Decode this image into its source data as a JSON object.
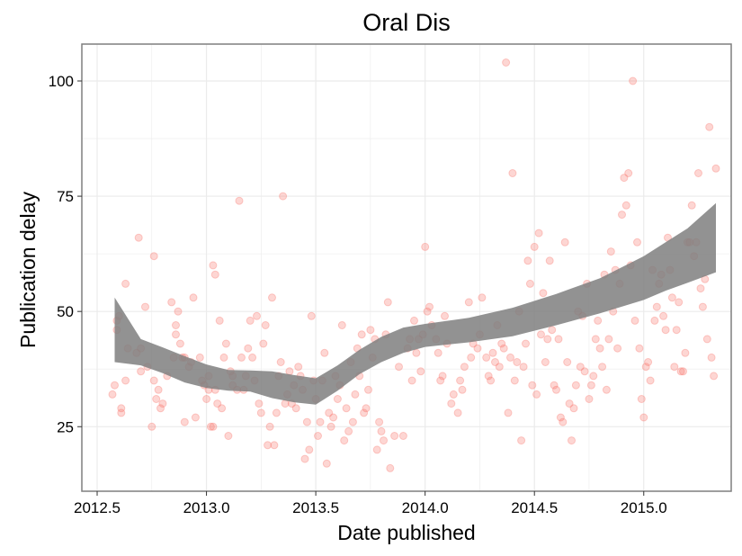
{
  "chart_data": {
    "type": "scatter",
    "title": "Oral Dis",
    "xlabel": "Date published",
    "ylabel": "Publication delay",
    "xlim": [
      2012.43,
      2015.4
    ],
    "ylim": [
      11,
      108
    ],
    "x_ticks": [
      2012.5,
      2013.0,
      2013.5,
      2014.0,
      2014.5,
      2015.0
    ],
    "x_tick_labels": [
      "2012.5",
      "2013.0",
      "2013.5",
      "2014.0",
      "2014.5",
      "2015.0"
    ],
    "y_ticks": [
      25,
      50,
      75,
      100
    ],
    "y_tick_labels": [
      "25",
      "50",
      "75",
      "100"
    ],
    "grid": true,
    "legend": "none",
    "colors": {
      "points": "#f8766d",
      "band": "#7f7f7f",
      "panel_border": "#7f7f7f",
      "grid": "#ebebeb"
    },
    "points": [
      [
        2012.57,
        32
      ],
      [
        2012.58,
        34
      ],
      [
        2012.59,
        46
      ],
      [
        2012.59,
        48
      ],
      [
        2012.6,
        49
      ],
      [
        2012.61,
        29
      ],
      [
        2012.61,
        28
      ],
      [
        2012.63,
        56
      ],
      [
        2012.63,
        35
      ],
      [
        2012.64,
        42
      ],
      [
        2012.68,
        41
      ],
      [
        2012.69,
        66
      ],
      [
        2012.7,
        42
      ],
      [
        2012.7,
        37
      ],
      [
        2012.72,
        51
      ],
      [
        2012.73,
        38
      ],
      [
        2012.75,
        25
      ],
      [
        2012.76,
        62
      ],
      [
        2012.76,
        35
      ],
      [
        2012.77,
        31
      ],
      [
        2012.78,
        33
      ],
      [
        2012.79,
        29
      ],
      [
        2012.8,
        30
      ],
      [
        2012.82,
        36
      ],
      [
        2012.84,
        52
      ],
      [
        2012.85,
        40
      ],
      [
        2012.86,
        45
      ],
      [
        2012.86,
        47
      ],
      [
        2012.87,
        50
      ],
      [
        2012.88,
        43
      ],
      [
        2012.89,
        40
      ],
      [
        2012.9,
        40
      ],
      [
        2012.9,
        26
      ],
      [
        2012.92,
        38
      ],
      [
        2012.93,
        39
      ],
      [
        2012.94,
        53
      ],
      [
        2012.95,
        27
      ],
      [
        2012.97,
        40
      ],
      [
        2012.98,
        35
      ],
      [
        2012.99,
        34
      ],
      [
        2013.0,
        31
      ],
      [
        2013.01,
        36
      ],
      [
        2013.01,
        33
      ],
      [
        2013.02,
        25
      ],
      [
        2013.03,
        25
      ],
      [
        2013.03,
        60
      ],
      [
        2013.04,
        58
      ],
      [
        2013.04,
        33
      ],
      [
        2013.05,
        30
      ],
      [
        2013.06,
        48
      ],
      [
        2013.07,
        29
      ],
      [
        2013.08,
        40
      ],
      [
        2013.09,
        43
      ],
      [
        2013.1,
        23
      ],
      [
        2013.11,
        37
      ],
      [
        2013.12,
        34
      ],
      [
        2013.12,
        36
      ],
      [
        2013.14,
        33
      ],
      [
        2013.15,
        74
      ],
      [
        2013.16,
        40
      ],
      [
        2013.17,
        33
      ],
      [
        2013.18,
        36
      ],
      [
        2013.19,
        42
      ],
      [
        2013.2,
        48
      ],
      [
        2013.21,
        40
      ],
      [
        2013.22,
        35
      ],
      [
        2013.23,
        49
      ],
      [
        2013.24,
        30
      ],
      [
        2013.25,
        28
      ],
      [
        2013.26,
        43
      ],
      [
        2013.27,
        47
      ],
      [
        2013.28,
        21
      ],
      [
        2013.29,
        25
      ],
      [
        2013.3,
        53
      ],
      [
        2013.31,
        21
      ],
      [
        2013.32,
        28
      ],
      [
        2013.33,
        36
      ],
      [
        2013.34,
        39
      ],
      [
        2013.35,
        75
      ],
      [
        2013.36,
        30
      ],
      [
        2013.37,
        32
      ],
      [
        2013.38,
        37
      ],
      [
        2013.39,
        30
      ],
      [
        2013.4,
        34
      ],
      [
        2013.41,
        29
      ],
      [
        2013.42,
        38
      ],
      [
        2013.43,
        36
      ],
      [
        2013.44,
        33
      ],
      [
        2013.45,
        18
      ],
      [
        2013.46,
        26
      ],
      [
        2013.47,
        20
      ],
      [
        2013.48,
        49
      ],
      [
        2013.49,
        35
      ],
      [
        2013.5,
        31
      ],
      [
        2013.51,
        23
      ],
      [
        2013.52,
        26
      ],
      [
        2013.53,
        35
      ],
      [
        2013.54,
        41
      ],
      [
        2013.55,
        17
      ],
      [
        2013.56,
        28
      ],
      [
        2013.57,
        25
      ],
      [
        2013.58,
        27
      ],
      [
        2013.59,
        36
      ],
      [
        2013.6,
        31
      ],
      [
        2013.61,
        34
      ],
      [
        2013.62,
        47
      ],
      [
        2013.63,
        22
      ],
      [
        2013.64,
        29
      ],
      [
        2013.65,
        24
      ],
      [
        2013.66,
        39
      ],
      [
        2013.67,
        26
      ],
      [
        2013.68,
        32
      ],
      [
        2013.69,
        42
      ],
      [
        2013.7,
        36
      ],
      [
        2013.71,
        45
      ],
      [
        2013.72,
        28
      ],
      [
        2013.73,
        29
      ],
      [
        2013.74,
        33
      ],
      [
        2013.75,
        46
      ],
      [
        2013.76,
        40
      ],
      [
        2013.77,
        44
      ],
      [
        2013.78,
        20
      ],
      [
        2013.79,
        26
      ],
      [
        2013.8,
        24
      ],
      [
        2013.81,
        22
      ],
      [
        2013.82,
        45
      ],
      [
        2013.83,
        52
      ],
      [
        2013.84,
        16
      ],
      [
        2013.86,
        23
      ],
      [
        2013.88,
        38
      ],
      [
        2013.9,
        23
      ],
      [
        2013.92,
        42
      ],
      [
        2013.93,
        44
      ],
      [
        2013.94,
        35
      ],
      [
        2013.95,
        48
      ],
      [
        2013.96,
        41
      ],
      [
        2013.97,
        44
      ],
      [
        2013.98,
        37
      ],
      [
        2013.99,
        45
      ],
      [
        2014.0,
        64
      ],
      [
        2014.01,
        50
      ],
      [
        2014.02,
        51
      ],
      [
        2014.03,
        47
      ],
      [
        2014.05,
        44
      ],
      [
        2014.06,
        41
      ],
      [
        2014.07,
        35
      ],
      [
        2014.08,
        36
      ],
      [
        2014.09,
        49
      ],
      [
        2014.1,
        43
      ],
      [
        2014.12,
        30
      ],
      [
        2014.13,
        32
      ],
      [
        2014.15,
        28
      ],
      [
        2014.16,
        35
      ],
      [
        2014.17,
        33
      ],
      [
        2014.18,
        38
      ],
      [
        2014.2,
        52
      ],
      [
        2014.21,
        40
      ],
      [
        2014.22,
        43
      ],
      [
        2014.24,
        42
      ],
      [
        2014.25,
        45
      ],
      [
        2014.26,
        53
      ],
      [
        2014.28,
        40
      ],
      [
        2014.29,
        36
      ],
      [
        2014.3,
        35
      ],
      [
        2014.31,
        41
      ],
      [
        2014.32,
        39
      ],
      [
        2014.33,
        47
      ],
      [
        2014.34,
        38
      ],
      [
        2014.35,
        43
      ],
      [
        2014.36,
        42
      ],
      [
        2014.37,
        104
      ],
      [
        2014.38,
        28
      ],
      [
        2014.39,
        40
      ],
      [
        2014.4,
        80
      ],
      [
        2014.41,
        35
      ],
      [
        2014.42,
        39
      ],
      [
        2014.43,
        50
      ],
      [
        2014.44,
        22
      ],
      [
        2014.45,
        38
      ],
      [
        2014.46,
        43
      ],
      [
        2014.47,
        61
      ],
      [
        2014.48,
        56
      ],
      [
        2014.49,
        34
      ],
      [
        2014.5,
        64
      ],
      [
        2014.51,
        32
      ],
      [
        2014.52,
        67
      ],
      [
        2014.53,
        45
      ],
      [
        2014.54,
        54
      ],
      [
        2014.55,
        39
      ],
      [
        2014.56,
        44
      ],
      [
        2014.57,
        61
      ],
      [
        2014.58,
        46
      ],
      [
        2014.59,
        34
      ],
      [
        2014.6,
        33
      ],
      [
        2014.61,
        44
      ],
      [
        2014.62,
        27
      ],
      [
        2014.63,
        26
      ],
      [
        2014.64,
        65
      ],
      [
        2014.65,
        39
      ],
      [
        2014.66,
        30
      ],
      [
        2014.67,
        22
      ],
      [
        2014.68,
        29
      ],
      [
        2014.69,
        34
      ],
      [
        2014.7,
        50
      ],
      [
        2014.71,
        38
      ],
      [
        2014.72,
        49
      ],
      [
        2014.73,
        37
      ],
      [
        2014.74,
        56
      ],
      [
        2014.75,
        31
      ],
      [
        2014.76,
        34
      ],
      [
        2014.77,
        36
      ],
      [
        2014.78,
        44
      ],
      [
        2014.79,
        48
      ],
      [
        2014.8,
        42
      ],
      [
        2014.81,
        38
      ],
      [
        2014.82,
        58
      ],
      [
        2014.83,
        33
      ],
      [
        2014.84,
        44
      ],
      [
        2014.85,
        63
      ],
      [
        2014.86,
        50
      ],
      [
        2014.87,
        59
      ],
      [
        2014.88,
        42
      ],
      [
        2014.89,
        56
      ],
      [
        2014.9,
        71
      ],
      [
        2014.91,
        79
      ],
      [
        2014.92,
        73
      ],
      [
        2014.93,
        80
      ],
      [
        2014.94,
        60
      ],
      [
        2014.95,
        100
      ],
      [
        2014.96,
        48
      ],
      [
        2014.97,
        65
      ],
      [
        2014.98,
        42
      ],
      [
        2014.99,
        31
      ],
      [
        2015.0,
        27
      ],
      [
        2015.01,
        38
      ],
      [
        2015.02,
        39
      ],
      [
        2015.03,
        35
      ],
      [
        2015.04,
        59
      ],
      [
        2015.05,
        48
      ],
      [
        2015.06,
        51
      ],
      [
        2015.07,
        56
      ],
      [
        2015.08,
        58
      ],
      [
        2015.09,
        49
      ],
      [
        2015.1,
        46
      ],
      [
        2015.11,
        66
      ],
      [
        2015.12,
        59
      ],
      [
        2015.13,
        53
      ],
      [
        2015.14,
        38
      ],
      [
        2015.15,
        46
      ],
      [
        2015.16,
        52
      ],
      [
        2015.17,
        37
      ],
      [
        2015.18,
        37
      ],
      [
        2015.19,
        41
      ],
      [
        2015.2,
        65
      ],
      [
        2015.21,
        65
      ],
      [
        2015.22,
        73
      ],
      [
        2015.23,
        62
      ],
      [
        2015.24,
        65
      ],
      [
        2015.25,
        80
      ],
      [
        2015.26,
        55
      ],
      [
        2015.27,
        51
      ],
      [
        2015.28,
        57
      ],
      [
        2015.29,
        44
      ],
      [
        2015.3,
        90
      ],
      [
        2015.31,
        40
      ],
      [
        2015.32,
        36
      ],
      [
        2015.33,
        81
      ]
    ],
    "smooth_band": {
      "x": [
        2012.58,
        2012.7,
        2012.8,
        2012.9,
        2013.0,
        2013.1,
        2013.2,
        2013.3,
        2013.4,
        2013.5,
        2013.6,
        2013.7,
        2013.8,
        2013.9,
        2014.0,
        2014.2,
        2014.4,
        2014.6,
        2014.8,
        2015.0,
        2015.1,
        2015.2,
        2015.33
      ],
      "upper": [
        53,
        44,
        42.2,
        40.3,
        38.5,
        37.3,
        37.2,
        37,
        36.2,
        35.5,
        38.3,
        41.7,
        44.5,
        46.5,
        47.3,
        48.6,
        50.8,
        53.8,
        57.2,
        62,
        65,
        68,
        73.5
      ],
      "lower": [
        39,
        38.3,
        36.6,
        34.6,
        33.4,
        32.8,
        32.6,
        31.2,
        30.3,
        29.8,
        32.8,
        36.4,
        39,
        41,
        42.3,
        43.3,
        44.6,
        47,
        49.6,
        52.5,
        54.5,
        56.2,
        58.5
      ]
    }
  }
}
